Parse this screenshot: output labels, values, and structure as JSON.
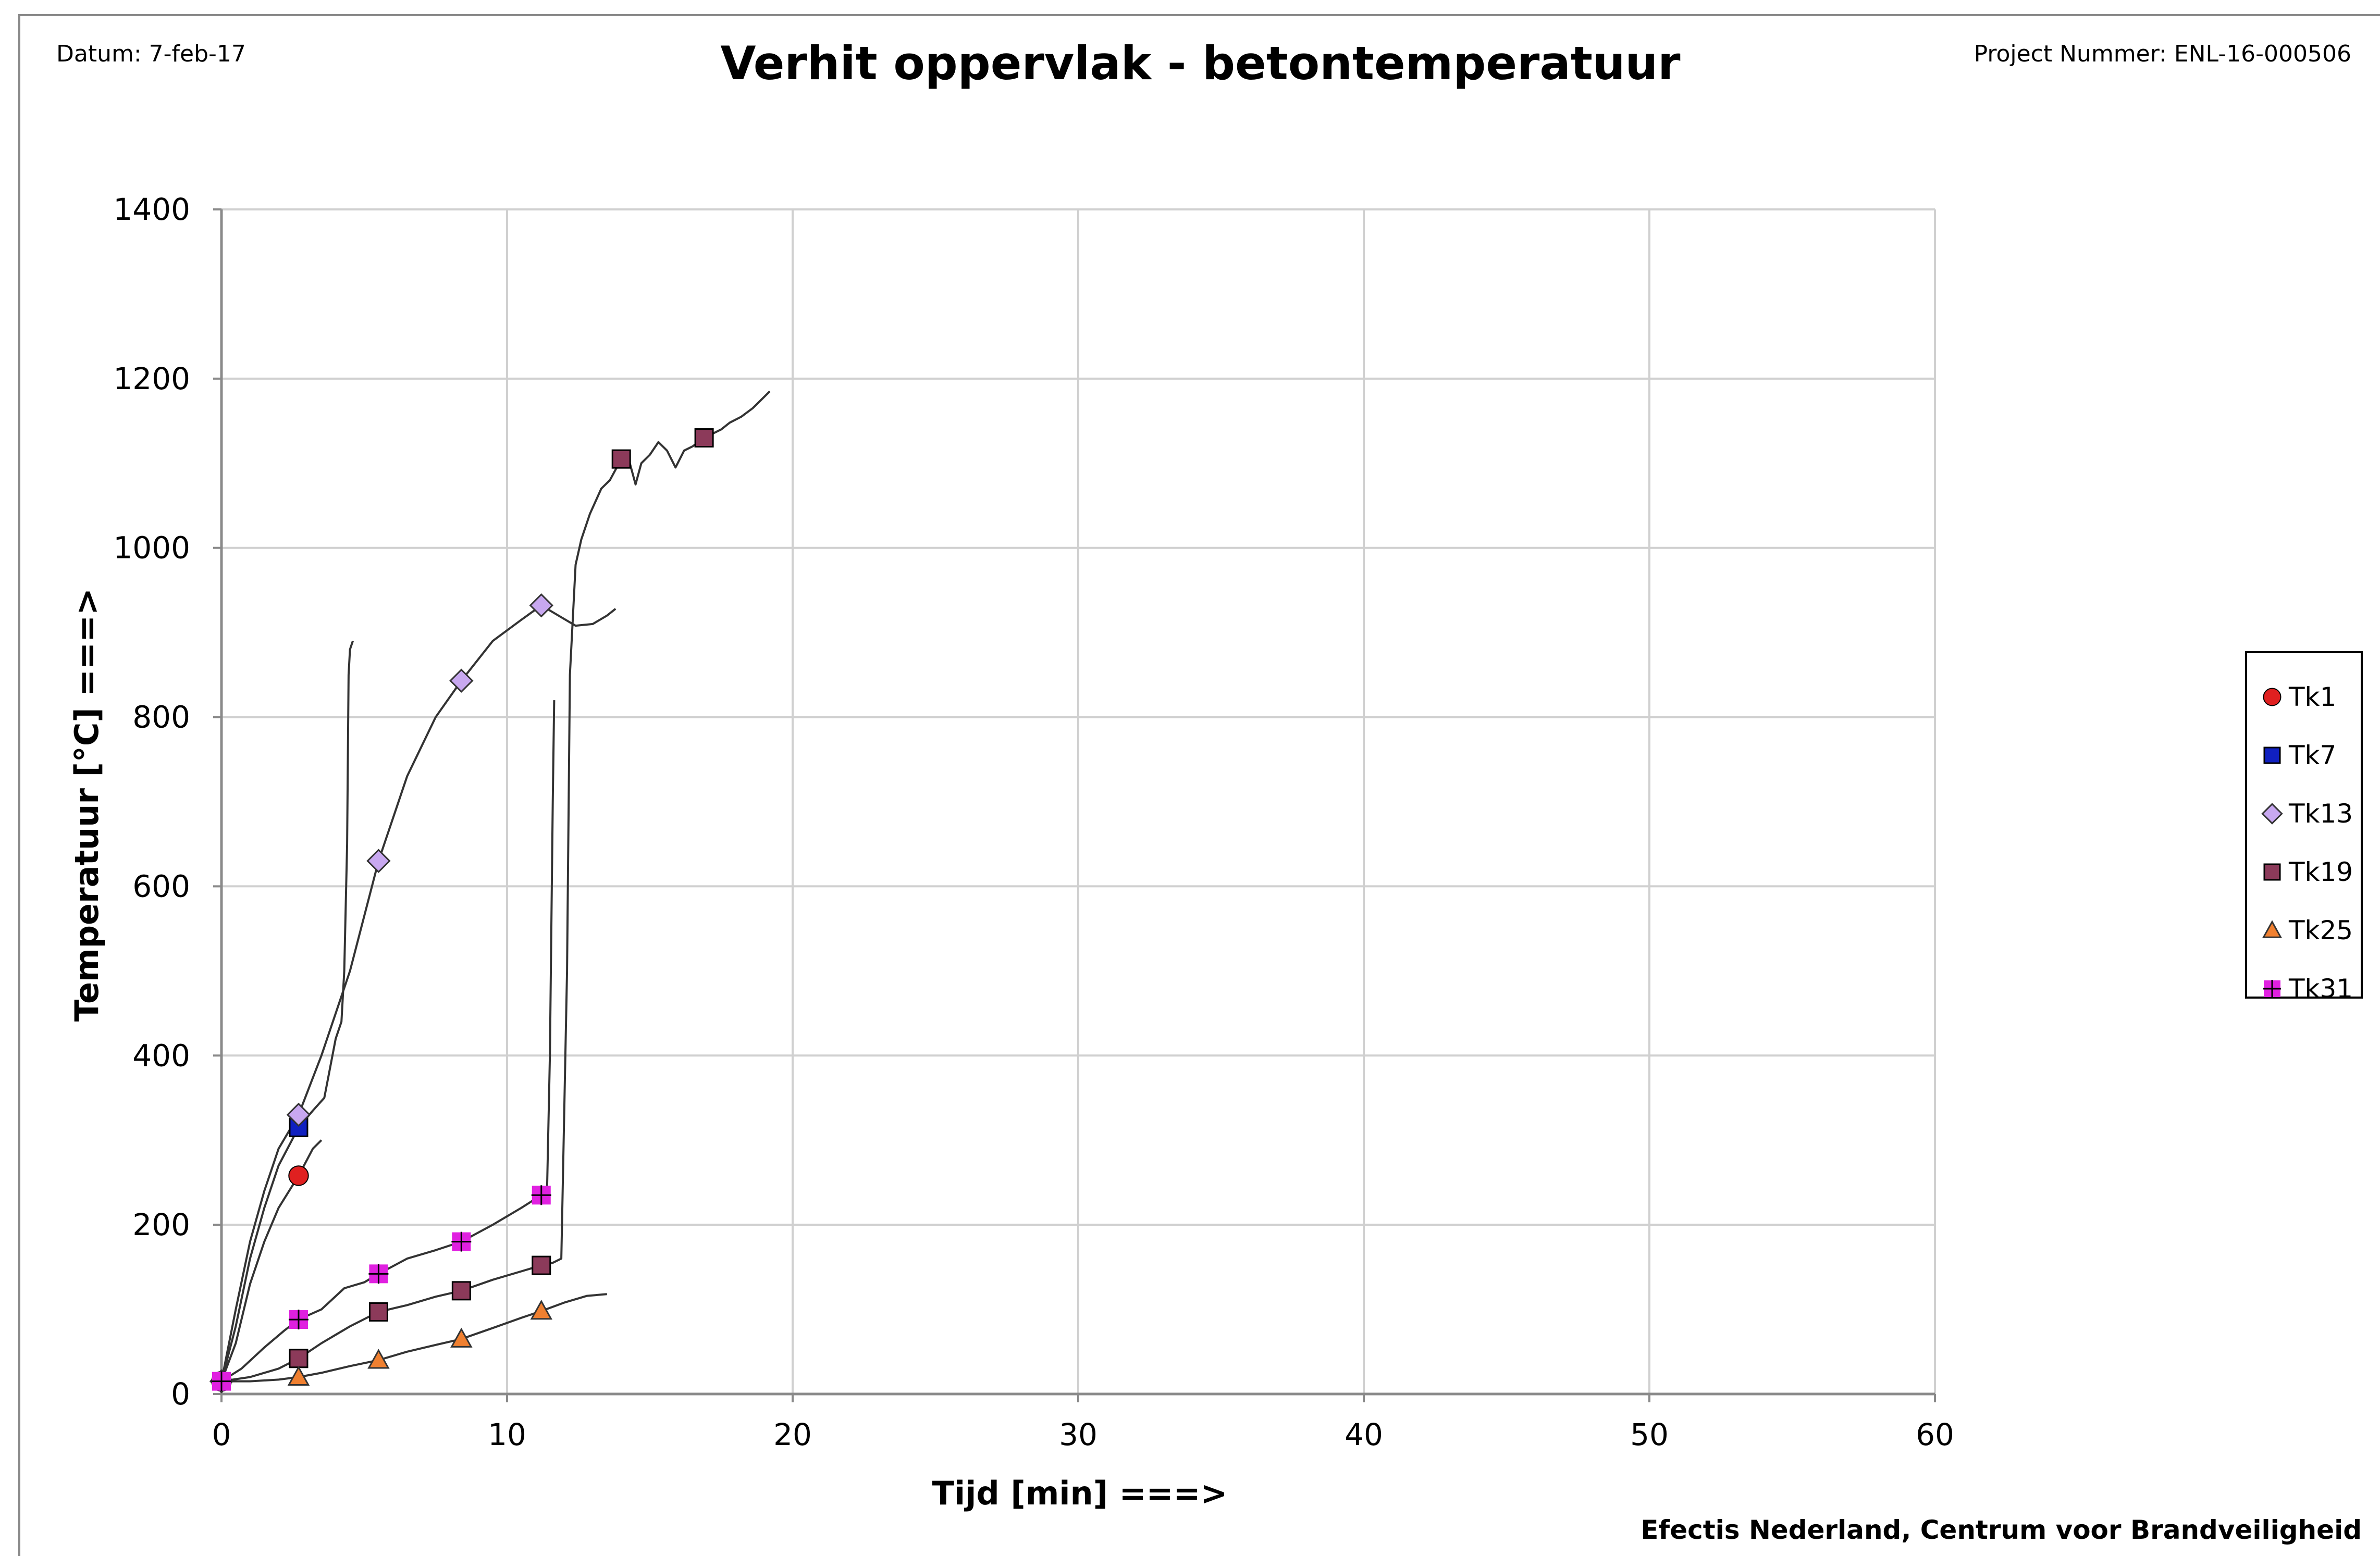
{
  "header": {
    "date": "Datum: 7-feb-17",
    "title": "Verhit oppervlak - betontemperatuur",
    "project": "Project Nummer: ENL-16-000506"
  },
  "footer": {
    "organization": "Efectis Nederland, Centrum voor Brandveiligheid"
  },
  "chart_data": {
    "type": "line",
    "title": "Verhit oppervlak - betontemperatuur",
    "xlabel": "Tijd [min] ===>",
    "ylabel": "Temperatuur [°C] ===>",
    "xlim": [
      0,
      60
    ],
    "ylim": [
      0,
      1400
    ],
    "x_ticks": [
      0,
      10,
      20,
      30,
      40,
      50,
      60
    ],
    "y_ticks": [
      0,
      200,
      400,
      600,
      800,
      1000,
      1200,
      1400
    ],
    "grid": true,
    "legend_position": "right",
    "series": [
      {
        "name": "Tk1",
        "color": "#e02020",
        "marker": "circle",
        "line": [
          [
            0,
            15
          ],
          [
            0.5,
            60
          ],
          [
            1,
            130
          ],
          [
            1.5,
            180
          ],
          [
            2,
            220
          ],
          [
            2.7,
            258
          ],
          [
            3.2,
            290
          ],
          [
            3.5,
            300
          ]
        ],
        "markers": [
          [
            0,
            15
          ],
          [
            2.7,
            258
          ]
        ]
      },
      {
        "name": "Tk7",
        "color": "#1020c0",
        "marker": "square",
        "line": [
          [
            0,
            15
          ],
          [
            0.5,
            80
          ],
          [
            1,
            160
          ],
          [
            1.5,
            220
          ],
          [
            2,
            270
          ],
          [
            2.7,
            315
          ],
          [
            3.2,
            335
          ],
          [
            3.6,
            350
          ],
          [
            4,
            420
          ],
          [
            4.2,
            440
          ],
          [
            4.3,
            500
          ],
          [
            4.4,
            650
          ],
          [
            4.45,
            850
          ],
          [
            4.5,
            880
          ],
          [
            4.6,
            890
          ]
        ],
        "markers": [
          [
            2.7,
            315
          ]
        ]
      },
      {
        "name": "Tk13",
        "color": "#c8a8f0",
        "marker": "diamond",
        "line": [
          [
            0,
            15
          ],
          [
            0.5,
            100
          ],
          [
            1,
            180
          ],
          [
            1.5,
            240
          ],
          [
            2,
            290
          ],
          [
            2.7,
            330
          ],
          [
            3.5,
            400
          ],
          [
            4.5,
            500
          ],
          [
            5.5,
            630
          ],
          [
            6.5,
            730
          ],
          [
            7.5,
            800
          ],
          [
            8.4,
            843
          ],
          [
            9.5,
            890
          ],
          [
            10.5,
            915
          ],
          [
            11.2,
            932
          ],
          [
            11.8,
            920
          ],
          [
            12.4,
            908
          ],
          [
            13,
            910
          ],
          [
            13.5,
            920
          ],
          [
            13.8,
            928
          ]
        ],
        "markers": [
          [
            0,
            15
          ],
          [
            2.7,
            330
          ],
          [
            5.5,
            630
          ],
          [
            8.4,
            843
          ],
          [
            11.2,
            932
          ]
        ]
      },
      {
        "name": "Tk19",
        "color": "#8c3a5a",
        "marker": "square",
        "line": [
          [
            0,
            15
          ],
          [
            1,
            20
          ],
          [
            2,
            30
          ],
          [
            2.7,
            42
          ],
          [
            3.5,
            60
          ],
          [
            4.5,
            80
          ],
          [
            5.5,
            97
          ],
          [
            6.5,
            105
          ],
          [
            7.5,
            115
          ],
          [
            8.4,
            122
          ],
          [
            9.5,
            135
          ],
          [
            10.5,
            145
          ],
          [
            11.2,
            152
          ],
          [
            11.6,
            155
          ],
          [
            11.9,
            160
          ],
          [
            12.1,
            500
          ],
          [
            12.2,
            850
          ],
          [
            12.4,
            980
          ],
          [
            12.6,
            1010
          ],
          [
            12.9,
            1040
          ],
          [
            13.3,
            1070
          ],
          [
            13.6,
            1080
          ],
          [
            14,
            1105
          ],
          [
            14.3,
            1100
          ],
          [
            14.5,
            1075
          ],
          [
            14.7,
            1100
          ],
          [
            15,
            1110
          ],
          [
            15.3,
            1125
          ],
          [
            15.6,
            1115
          ],
          [
            15.9,
            1095
          ],
          [
            16.2,
            1115
          ],
          [
            16.5,
            1120
          ],
          [
            16.9,
            1130
          ],
          [
            17.2,
            1135
          ],
          [
            17.5,
            1140
          ],
          [
            17.8,
            1148
          ],
          [
            18.2,
            1155
          ],
          [
            18.6,
            1165
          ],
          [
            19.2,
            1185
          ]
        ],
        "markers": [
          [
            2.7,
            42
          ],
          [
            5.5,
            97
          ],
          [
            8.4,
            122
          ],
          [
            11.2,
            152
          ],
          [
            14,
            1105
          ],
          [
            16.9,
            1130
          ]
        ]
      },
      {
        "name": "Tk25",
        "color": "#f08030",
        "marker": "triangle",
        "line": [
          [
            0,
            15
          ],
          [
            1,
            15
          ],
          [
            2,
            17
          ],
          [
            2.7,
            20
          ],
          [
            3.5,
            25
          ],
          [
            4.5,
            33
          ],
          [
            5.5,
            40
          ],
          [
            6.5,
            50
          ],
          [
            7.5,
            58
          ],
          [
            8.4,
            65
          ],
          [
            9.5,
            78
          ],
          [
            10.5,
            90
          ],
          [
            11.2,
            98
          ],
          [
            12,
            108
          ],
          [
            12.8,
            116
          ],
          [
            13.5,
            118
          ]
        ],
        "markers": [
          [
            2.7,
            20
          ],
          [
            5.5,
            40
          ],
          [
            8.4,
            65
          ],
          [
            11.2,
            98
          ]
        ]
      },
      {
        "name": "Tk31",
        "color": "#e020e0",
        "marker": "square-cross",
        "line": [
          [
            0,
            15
          ],
          [
            0.7,
            30
          ],
          [
            1.5,
            55
          ],
          [
            2.2,
            75
          ],
          [
            2.7,
            88
          ],
          [
            3.5,
            100
          ],
          [
            4.3,
            125
          ],
          [
            5,
            132
          ],
          [
            5.5,
            142
          ],
          [
            6.5,
            160
          ],
          [
            7.5,
            170
          ],
          [
            8.4,
            180
          ],
          [
            9.5,
            200
          ],
          [
            10.5,
            220
          ],
          [
            11.2,
            235
          ],
          [
            11.4,
            240
          ],
          [
            11.5,
            400
          ],
          [
            11.6,
            700
          ],
          [
            11.65,
            820
          ]
        ],
        "markers": [
          [
            0,
            15
          ],
          [
            2.7,
            88
          ],
          [
            5.5,
            142
          ],
          [
            8.4,
            180
          ],
          [
            11.2,
            235
          ]
        ]
      }
    ]
  }
}
